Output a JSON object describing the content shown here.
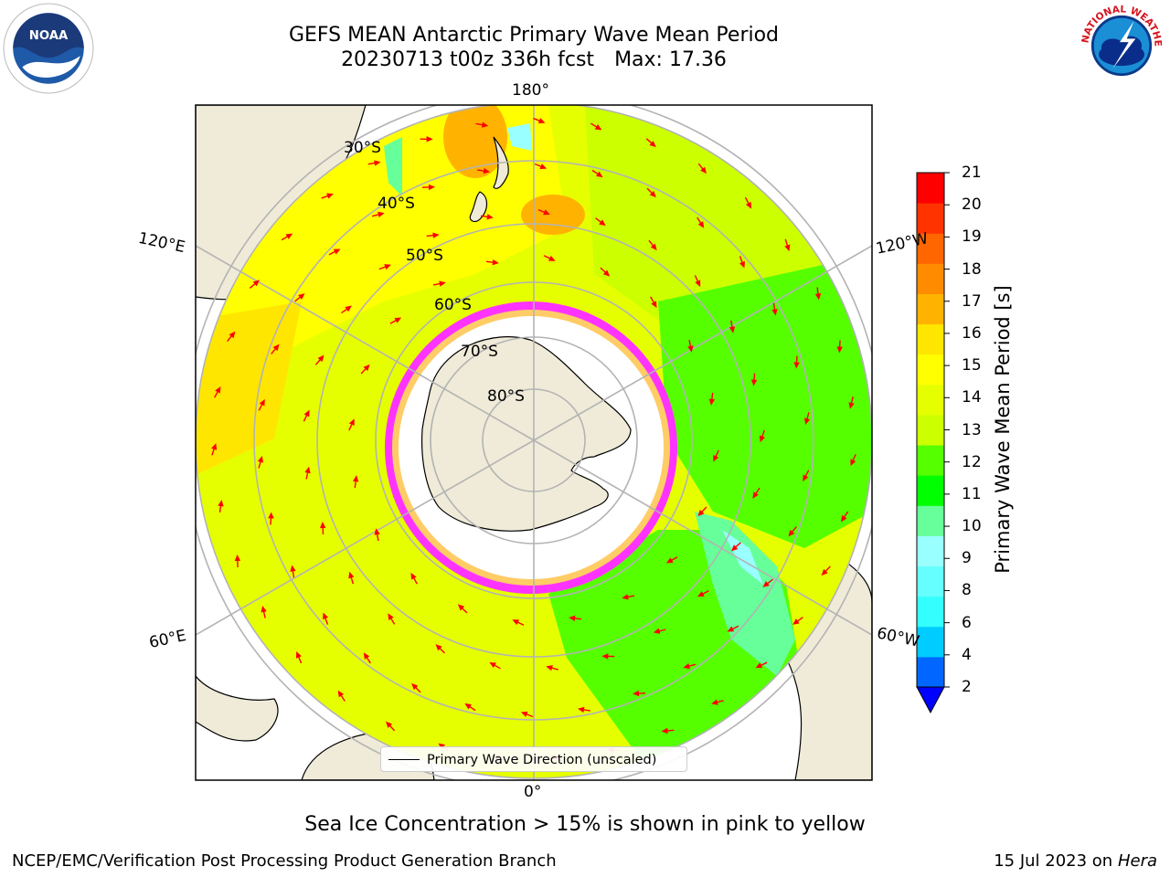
{
  "title": {
    "line1": "GEFS MEAN Antarctic Primary Wave Mean Period",
    "line2_run": "20230713 t00z 336h fcst",
    "line2_max": "Max: 17.36"
  },
  "logos": {
    "left": "NOAA",
    "right": "NATIONAL WEATHER SERVICE"
  },
  "map": {
    "projection": "south-polar-stereographic",
    "lat_labels": [
      "30°S",
      "40°S",
      "50°S",
      "60°S",
      "70°S",
      "80°S"
    ],
    "lon_labels": {
      "top": "180°",
      "bottom": "0°",
      "upper_left": "120°E",
      "lower_left": "60°E",
      "upper_right": "120°W",
      "lower_right": "60°W"
    },
    "legend": "Primary Wave Direction (unscaled)",
    "arrow_color": "#ff0000",
    "land_color": "#efebd8",
    "ice_colors": [
      "#ff33ff",
      "#ff9966",
      "#ffcc66"
    ]
  },
  "colorbar": {
    "label": "Primary Wave Mean Period [s]",
    "ticks": [
      "2",
      "4",
      "6",
      "8",
      "9",
      "10",
      "11",
      "12",
      "13",
      "14",
      "15",
      "16",
      "17",
      "18",
      "19",
      "20",
      "21"
    ],
    "colors": [
      "#0066ff",
      "#00ccff",
      "#33ffff",
      "#66ffff",
      "#99ffff",
      "#66ff99",
      "#00ff00",
      "#55ff00",
      "#ccff00",
      "#e6ff00",
      "#ffff00",
      "#ffe600",
      "#ffb300",
      "#ff8c00",
      "#ff6600",
      "#ff3300",
      "#ff0000"
    ],
    "under_color": "#0000ff"
  },
  "caption": "Sea Ice Concentration > 15% is shown in pink to yellow",
  "footer": {
    "left": "NCEP/EMC/Verification Post Processing Product Generation Branch",
    "right_date": "15 Jul 2023 on",
    "right_machine": "Hera"
  }
}
